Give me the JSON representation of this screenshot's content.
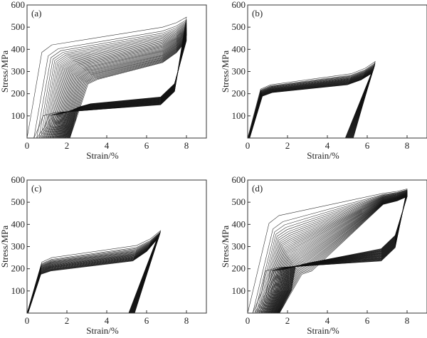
{
  "chart_data": [
    {
      "type": "line",
      "panel": "(a)",
      "xlabel": "Strain/%",
      "ylabel": "Stress/MPa",
      "xlim": [
        0,
        9
      ],
      "ylim": [
        0,
        600
      ],
      "xticks": [
        "0",
        "2",
        "4",
        "6",
        "8"
      ],
      "yticks": [
        "100",
        "200",
        "300",
        "400",
        "500",
        "600"
      ],
      "cycles": 40,
      "max_strain": [
        8,
        8
      ],
      "peak_stress": [
        545,
        440
      ],
      "residual_strain": [
        0,
        2.15
      ],
      "yield_stress": [
        420,
        265
      ],
      "modulus": [
        470,
        250
      ],
      "plateau_end_stress": [
        500,
        340
      ],
      "unload_mode": "plateau",
      "upper_unload_stress": [
        150,
        185
      ],
      "lower_unload_stress": [
        100,
        140
      ],
      "lower_unload_strain": [
        0.8,
        2.6
      ]
    },
    {
      "type": "line",
      "panel": "(b)",
      "xlabel": "Strain/%",
      "ylabel": "Stress/MPa",
      "xlim": [
        0,
        9
      ],
      "ylim": [
        0,
        600
      ],
      "xticks": [
        "0",
        "2",
        "4",
        "6",
        "8"
      ],
      "yticks": [
        "100",
        "200",
        "300",
        "400",
        "500",
        "600"
      ],
      "cycles": 30,
      "max_strain": [
        6.4,
        6.2
      ],
      "peak_stress": [
        345,
        290
      ],
      "residual_strain": [
        0,
        0.1
      ],
      "yield_stress": [
        240,
        205
      ],
      "modulus": [
        300,
        260
      ],
      "plateau_end_stress": [
        290,
        240
      ],
      "unload_mode": "linear",
      "unload_zero_strain": [
        5.3,
        4.9
      ]
    },
    {
      "type": "line",
      "panel": "(c)",
      "xlabel": "Strain/%",
      "ylabel": "Stress/MPa",
      "xlim": [
        0,
        9
      ],
      "ylim": [
        0,
        600
      ],
      "xticks": [
        "0",
        "2",
        "4",
        "6",
        "8"
      ],
      "yticks": [
        "100",
        "200",
        "300",
        "400",
        "500",
        "600"
      ],
      "cycles": 30,
      "max_strain": [
        6.7,
        6.5
      ],
      "peak_stress": [
        372,
        330
      ],
      "residual_strain": [
        0,
        0.05
      ],
      "yield_stress": [
        250,
        190
      ],
      "modulus": [
        280,
        240
      ],
      "plateau_end_stress": [
        305,
        235
      ],
      "unload_mode": "linear",
      "unload_zero_strain": [
        5.4,
        5.1
      ]
    },
    {
      "type": "line",
      "panel": "(d)",
      "xlabel": "Strain/%",
      "ylabel": "Stress/MPa",
      "xlim": [
        0,
        9
      ],
      "ylim": [
        0,
        600
      ],
      "xticks": [
        "0",
        "2",
        "4",
        "6",
        "8"
      ],
      "yticks": [
        "100",
        "200",
        "300",
        "400",
        "500",
        "600"
      ],
      "cycles": 40,
      "max_strain": [
        8,
        8
      ],
      "peak_stress": [
        560,
        525
      ],
      "residual_strain": [
        0,
        1.6
      ],
      "yield_stress": [
        440,
        190
      ],
      "modulus": [
        360,
        150
      ],
      "plateau_end_stress": [
        540,
        490
      ],
      "unload_mode": "plateau",
      "upper_unload_stress": [
        235,
        290
      ],
      "lower_unload_stress": [
        190,
        210
      ],
      "lower_unload_strain": [
        0.9,
        2.4
      ]
    }
  ]
}
